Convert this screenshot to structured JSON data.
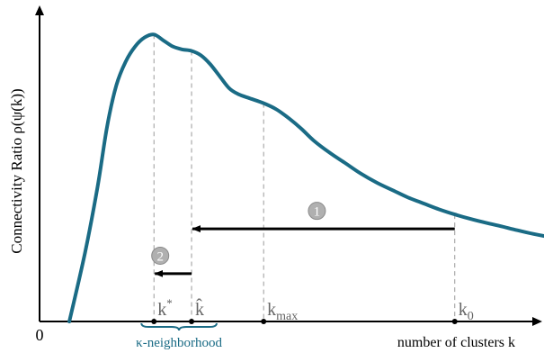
{
  "chart_data": {
    "type": "line",
    "xlabel": "number of clusters k",
    "ylabel": "Connectivity Ratio  ρ(ψ(k))",
    "origin_label": "0",
    "series": [
      {
        "color": "#1a6b85",
        "x": [
          0.0,
          0.5,
          0.9,
          1.2,
          1.5,
          1.8,
          2.1,
          2.4,
          2.7,
          3.0,
          3.3,
          3.6,
          3.9,
          4.2,
          4.5,
          4.8,
          5.1,
          5.4,
          5.8,
          6.2,
          6.6,
          7.0,
          7.4,
          7.8,
          8.3,
          8.8,
          9.3,
          9.8,
          10.3,
          10.8,
          11.3,
          11.8,
          12.3,
          12.8,
          13.3,
          13.8,
          14.3,
          14.8,
          15.3
        ],
        "y": [
          0.0,
          0.23,
          0.45,
          0.65,
          0.79,
          0.87,
          0.92,
          0.95,
          0.96,
          0.94,
          0.92,
          0.91,
          0.905,
          0.89,
          0.86,
          0.82,
          0.78,
          0.76,
          0.745,
          0.73,
          0.71,
          0.68,
          0.645,
          0.605,
          0.565,
          0.53,
          0.495,
          0.465,
          0.44,
          0.415,
          0.395,
          0.375,
          0.358,
          0.343,
          0.33,
          0.318,
          0.305,
          0.293,
          0.283
        ]
      }
    ],
    "markers": [
      {
        "x": 2.7,
        "label": "k*"
      },
      {
        "x": 3.9,
        "label": "k̂"
      },
      {
        "x": 6.2,
        "label": "kmax"
      },
      {
        "x": 12.3,
        "label": "k0"
      }
    ],
    "steps": [
      {
        "label": "1",
        "from": 12.3,
        "to": 3.9,
        "y": 0.31,
        "badge_x": 7.9,
        "badge_y": 0.37
      },
      {
        "label": "2",
        "from": 3.9,
        "to": 2.7,
        "y": 0.16,
        "badge_x": 2.9,
        "badge_y": 0.22
      }
    ],
    "neighborhood": {
      "label": "κ-neighborhood",
      "from": 2.3,
      "to": 4.7
    },
    "xlim": [
      -0.65,
      15.45
    ],
    "ylim": [
      0,
      1.0
    ],
    "grid": false,
    "legend": "none"
  }
}
